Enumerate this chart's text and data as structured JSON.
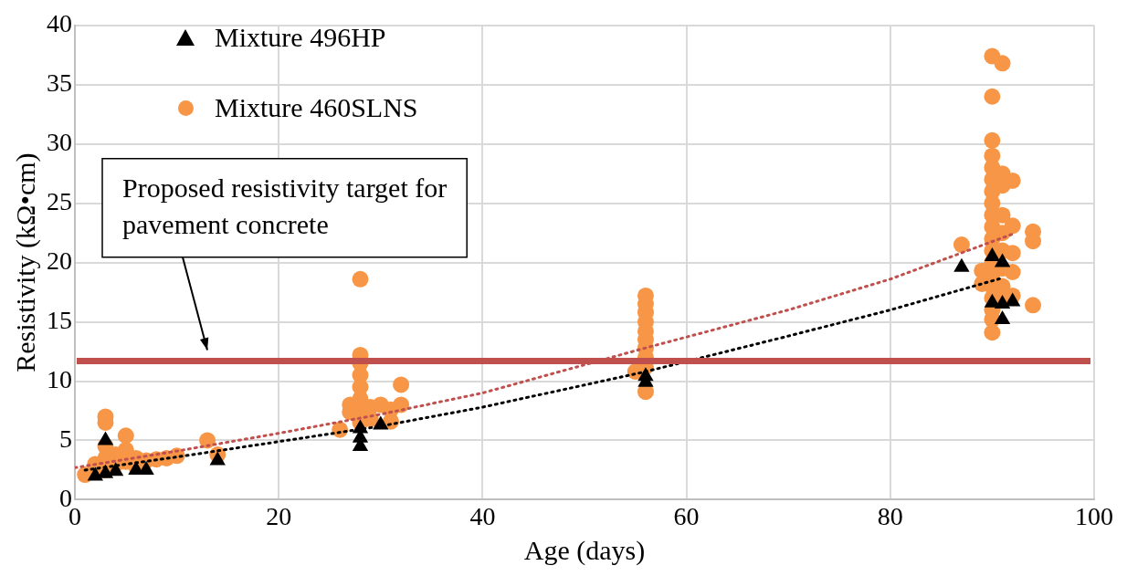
{
  "chart_data": {
    "type": "scatter",
    "xlabel": "Age (days)",
    "ylabel": "Resistivity (kΩ•cm)",
    "xlim": [
      0,
      100
    ],
    "xticks": [
      0,
      20,
      40,
      60,
      80,
      100
    ],
    "ylim": [
      0,
      40
    ],
    "yticks": [
      0,
      5,
      10,
      15,
      20,
      25,
      30,
      35,
      40
    ],
    "grid": true,
    "legend": "top left",
    "series": [
      {
        "name": "Mixture 496HP",
        "type": "scatter",
        "marker": "triangle",
        "color": "#000000",
        "x": [
          2,
          3,
          3,
          4,
          6,
          7,
          14,
          28,
          28,
          28,
          30,
          56,
          56,
          87,
          90,
          90,
          91,
          91,
          92,
          91
        ],
        "values": [
          2.0,
          2.2,
          5.0,
          2.4,
          2.5,
          2.5,
          3.3,
          4.5,
          5.2,
          6.0,
          6.3,
          9.9,
          10.4,
          19.6,
          20.5,
          16.6,
          15.2,
          16.5,
          16.7,
          20.0
        ]
      },
      {
        "name": "Mixture 460SLNS",
        "type": "scatter",
        "marker": "circle",
        "color": "#f79646",
        "x": [
          1,
          2,
          3,
          3,
          3,
          3,
          3,
          4,
          4,
          5,
          5,
          5,
          6,
          6,
          7,
          8,
          9,
          10,
          13,
          14,
          26,
          27,
          27,
          28,
          28,
          28,
          28,
          28,
          28,
          28,
          28,
          29,
          29,
          30,
          31,
          31,
          32,
          32,
          55,
          56,
          56,
          56,
          56,
          56,
          56,
          56,
          56,
          56,
          56,
          87,
          89,
          89,
          90,
          91,
          90,
          90,
          90,
          90,
          90,
          90,
          90,
          90,
          90,
          90,
          90,
          90,
          90,
          90,
          90,
          90,
          90,
          90,
          91,
          91,
          91,
          91,
          91,
          91,
          91,
          91,
          92,
          92,
          92,
          92,
          92,
          94,
          94,
          94
        ],
        "values": [
          2.1,
          3.0,
          2.5,
          3.5,
          4.5,
          6.5,
          7.0,
          3.0,
          3.8,
          4.2,
          5.4,
          3.2,
          3.5,
          2.8,
          3.3,
          3.4,
          3.5,
          3.7,
          5.0,
          3.8,
          5.9,
          8.0,
          7.4,
          18.6,
          12.2,
          11.5,
          10.5,
          9.5,
          8.5,
          7.5,
          6.5,
          7.8,
          6.8,
          8.0,
          7.6,
          6.6,
          9.7,
          8.0,
          10.8,
          17.2,
          16.5,
          15.8,
          15.0,
          14.2,
          13.5,
          12.8,
          12.0,
          11.2,
          9.1,
          21.5,
          19.3,
          18.2,
          37.4,
          36.8,
          34.0,
          30.3,
          29.0,
          28.0,
          27.0,
          26.0,
          25.0,
          24.0,
          23.0,
          22.0,
          21.0,
          20.0,
          19.0,
          18.0,
          17.0,
          16.0,
          15.2,
          14.1,
          27.5,
          26.5,
          24.0,
          22.5,
          21.0,
          19.5,
          18.0,
          17.0,
          26.9,
          23.1,
          20.8,
          19.2,
          17.2,
          22.6,
          21.8,
          16.4
        ]
      },
      {
        "type": "line",
        "line_style": "dotted",
        "marker": "none",
        "color": "#000000",
        "x": [
          1,
          10,
          20,
          30,
          40,
          56,
          70,
          80,
          91
        ],
        "values": [
          2.5,
          3.6,
          4.9,
          6.2,
          7.8,
          10.8,
          13.8,
          16.0,
          18.7
        ]
      },
      {
        "type": "line",
        "line_style": "dotted",
        "marker": "none",
        "color": "#c0504d",
        "x": [
          0,
          10,
          20,
          30,
          40,
          56,
          70,
          80,
          92
        ],
        "values": [
          2.7,
          4.1,
          5.6,
          7.2,
          9.0,
          12.8,
          16.0,
          18.6,
          22.4
        ]
      }
    ],
    "ref_lines": [
      {
        "axis": "y",
        "value": 11.7,
        "color": "#c0504d",
        "label": "Proposed resistivity target for pavement concrete"
      }
    ]
  }
}
